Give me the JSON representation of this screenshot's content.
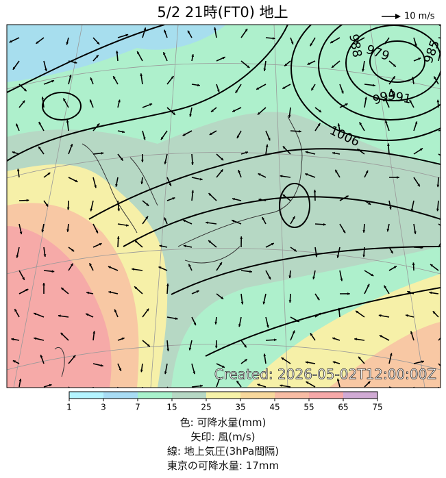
{
  "header": {
    "title": "5/2  21時(FT0)    地上",
    "wind_scale": "10 m/s"
  },
  "map": {
    "isobar_labels": [
      "988",
      "979",
      "985",
      "991",
      "994",
      "1006"
    ],
    "created": "Created: 2026-05-02T12:00:00Z"
  },
  "colorbar": {
    "ticks": [
      1,
      3,
      7,
      15,
      25,
      35,
      45,
      55,
      65,
      75
    ],
    "colors": [
      "#b4f4ff",
      "#a8dcf4",
      "#a8f2cc",
      "#b6d8c4",
      "#f6f2a8",
      "#f8d89c",
      "#f8bca4",
      "#f6a8a8",
      "#d0aad4"
    ]
  },
  "legend": [
    "色: 可降水量(mm)",
    "矢印: 風(m/s)",
    "線: 地上気圧(3hPa間隔)",
    "東京の可降水量: 17mm"
  ]
}
